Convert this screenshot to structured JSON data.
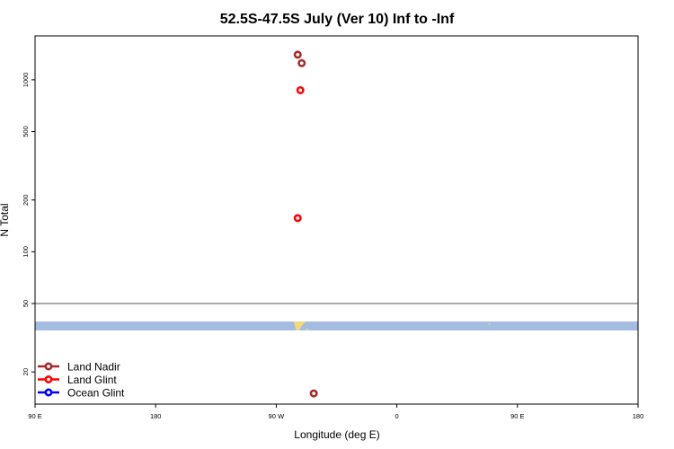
{
  "chart_data": {
    "type": "scatter",
    "title": "52.5S-47.5S July (Ver 10)   Inf to -Inf",
    "xlabel": "Longitude (deg E)",
    "ylabel": "N Total",
    "x_scale": "longitude (90E to 180 spanning one full revolution)",
    "x_ticks": [
      {
        "value": 90,
        "label": "90 E"
      },
      {
        "value": 180,
        "label": "180"
      },
      {
        "value": 270,
        "label": "90 W"
      },
      {
        "value": 360,
        "label": "0"
      },
      {
        "value": 450,
        "label": "90 E"
      },
      {
        "value": 540,
        "label": "180"
      }
    ],
    "xlim": [
      90,
      540
    ],
    "y_scale": "log",
    "y_ticks": [
      20,
      50,
      100,
      200,
      500,
      1000
    ],
    "ylim": [
      13,
      1800
    ],
    "reference_line_y": 50,
    "map_strip": {
      "y_center": 37,
      "ocean_color": "#a4bcdf",
      "land_color": "#f5d87a"
    },
    "series": [
      {
        "name": "Land Nadir",
        "color": "#a52a2a",
        "points": [
          [
            286,
            1400
          ],
          [
            289,
            1250
          ],
          [
            298,
            15
          ]
        ]
      },
      {
        "name": "Land Glint",
        "color": "#ff0000",
        "points": [
          [
            288,
            870
          ],
          [
            286,
            157
          ]
        ]
      },
      {
        "name": "Ocean Glint",
        "color": "#0000ff",
        "points": []
      }
    ],
    "legend_position": "bottom-left"
  }
}
